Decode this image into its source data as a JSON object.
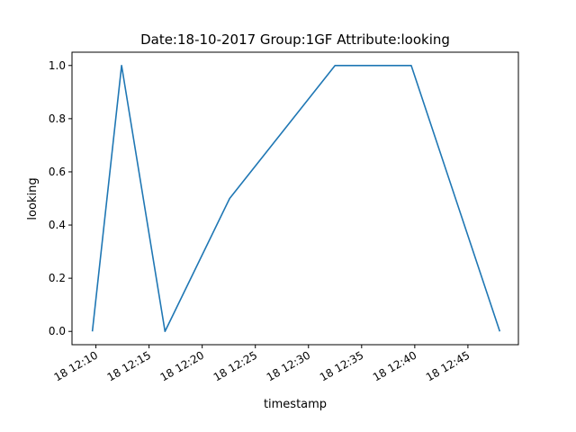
{
  "chart_data": {
    "type": "line",
    "title": "Date:18-10-2017  Group:1GF Attribute:looking",
    "xlabel": "timestamp",
    "ylabel": "looking",
    "x_ticks": [
      "18 12:10",
      "18 12:15",
      "18 12:20",
      "18 12:25",
      "18 12:30",
      "18 12:35",
      "18 12:40",
      "18 12:45"
    ],
    "y_ticks": [
      "0.0",
      "0.2",
      "0.4",
      "0.6",
      "0.8",
      "1.0"
    ],
    "xlim": [
      "2017-10-18 12:07:45",
      "2017-10-18 12:49:45"
    ],
    "ylim": [
      -0.05,
      1.05
    ],
    "grid": false,
    "series": [
      {
        "color": "#1f77b4",
        "x": [
          "2017-10-18 12:09:40",
          "2017-10-18 12:12:25",
          "2017-10-18 12:16:30",
          "2017-10-18 12:22:35",
          "2017-10-18 12:32:30",
          "2017-10-18 12:39:40",
          "2017-10-18 12:48:00"
        ],
        "y": [
          0.0,
          1.0,
          0.0,
          0.5,
          1.0,
          1.0,
          0.0
        ]
      }
    ]
  }
}
